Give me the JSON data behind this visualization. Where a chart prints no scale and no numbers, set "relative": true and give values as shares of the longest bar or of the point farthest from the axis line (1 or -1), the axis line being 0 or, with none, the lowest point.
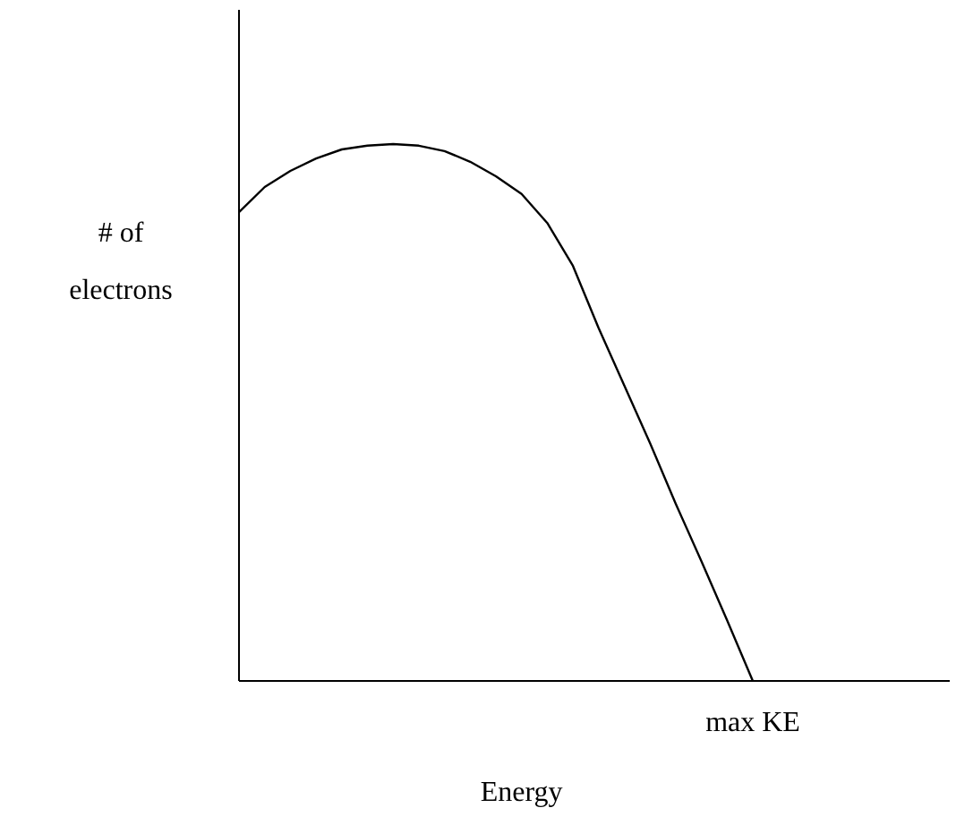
{
  "chart_data": {
    "type": "line",
    "relative": true,
    "xlabel": "Energy",
    "ylabel": "# of electrons",
    "categories": [
      null,
      null,
      null,
      null,
      null,
      null,
      null,
      null,
      null,
      null,
      null,
      null,
      null,
      null,
      null,
      null,
      null,
      null,
      null,
      null,
      null
    ],
    "series": [
      {
        "color": "#000000",
        "values": [
          0.873,
          0.92,
          0.95,
          0.973,
          0.99,
          0.997,
          1,
          0.997,
          0.987,
          0.967,
          0.94,
          0.907,
          0.853,
          0.773,
          0.657,
          0.55,
          0.443,
          0.33,
          0.223,
          0.113,
          0
        ]
      }
    ],
    "annotations": [
      "max KE"
    ],
    "grid": false,
    "marker": "none",
    "line_style": "solid"
  }
}
